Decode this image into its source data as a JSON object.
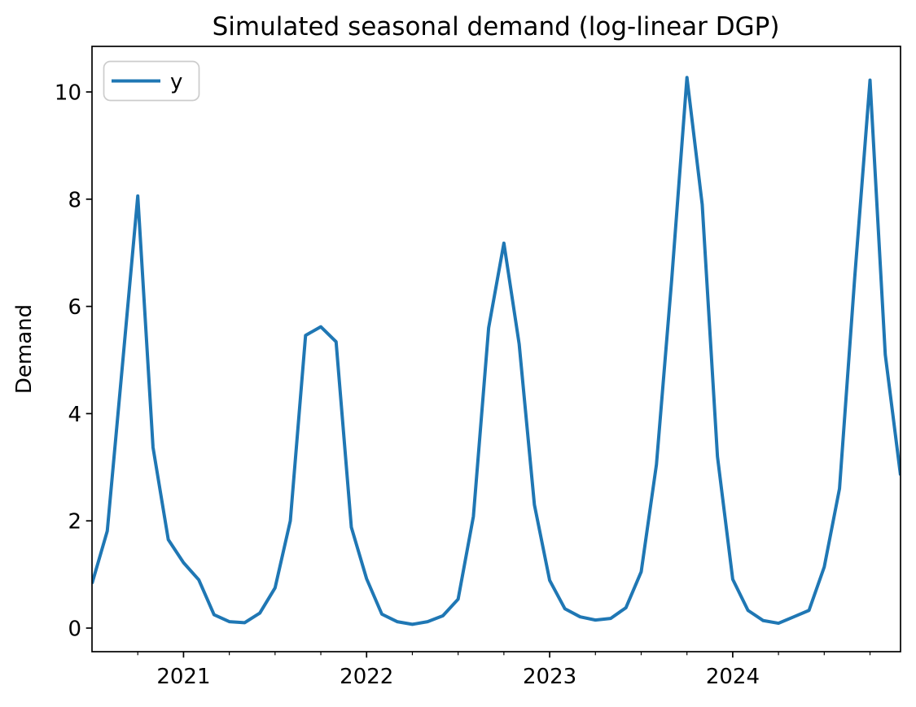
{
  "figure": {
    "title": "Simulated seasonal demand (log-linear DGP)"
  },
  "legend": {
    "position": "upper left",
    "entries": [
      {
        "label": "y",
        "color": "#1f77b4"
      }
    ]
  },
  "colors": {
    "line": "#1f77b4",
    "axes": "#000000",
    "legend_border": "#cccccc",
    "background": "#ffffff"
  },
  "chart_data": {
    "type": "line",
    "title": "Simulated seasonal demand (log-linear DGP)",
    "xlabel": "",
    "ylabel": "Demand",
    "grid": false,
    "legend_position": "upper left",
    "xlim": [
      2020.5,
      2024.9167
    ],
    "ylim": [
      -0.44,
      10.85
    ],
    "y_ticks": [
      0,
      2,
      4,
      6,
      8,
      10
    ],
    "x_major_ticks": [
      {
        "t": 2021,
        "label": "2021"
      },
      {
        "t": 2022,
        "label": "2022"
      },
      {
        "t": 2023,
        "label": "2023"
      },
      {
        "t": 2024,
        "label": "2024"
      }
    ],
    "x_minor_ticks": [
      2020.75,
      2021.25,
      2021.5,
      2021.75,
      2022.25,
      2022.5,
      2022.75,
      2023.25,
      2023.5,
      2023.75,
      2024.25,
      2024.5,
      2024.75
    ],
    "series": [
      {
        "name": "y",
        "color": "#1f77b4",
        "x": [
          "2020-07",
          "2020-08",
          "2020-09",
          "2020-10",
          "2020-11",
          "2020-12",
          "2021-01",
          "2021-02",
          "2021-03",
          "2021-04",
          "2021-05",
          "2021-06",
          "2021-07",
          "2021-08",
          "2021-09",
          "2021-10",
          "2021-11",
          "2021-12",
          "2022-01",
          "2022-02",
          "2022-03",
          "2022-04",
          "2022-05",
          "2022-06",
          "2022-07",
          "2022-08",
          "2022-09",
          "2022-10",
          "2022-11",
          "2022-12",
          "2023-01",
          "2023-02",
          "2023-03",
          "2023-04",
          "2023-05",
          "2023-06",
          "2023-07",
          "2023-08",
          "2023-09",
          "2023-10",
          "2023-11",
          "2023-12",
          "2024-01",
          "2024-02",
          "2024-03",
          "2024-04",
          "2024-05",
          "2024-06",
          "2024-07",
          "2024-08",
          "2024-09",
          "2024-10",
          "2024-11",
          "2024-12"
        ],
        "values": [
          0.83,
          1.81,
          4.92,
          8.06,
          3.37,
          1.65,
          1.22,
          0.9,
          0.25,
          0.12,
          0.1,
          0.28,
          0.75,
          2.0,
          5.46,
          5.62,
          5.34,
          1.88,
          0.92,
          0.26,
          0.12,
          0.07,
          0.12,
          0.23,
          0.54,
          2.08,
          5.6,
          7.18,
          5.3,
          2.3,
          0.89,
          0.36,
          0.21,
          0.15,
          0.18,
          0.38,
          1.05,
          3.05,
          6.5,
          10.27,
          7.9,
          3.2,
          0.91,
          0.33,
          0.14,
          0.09,
          0.21,
          0.33,
          1.14,
          2.6,
          6.55,
          10.22,
          5.1,
          2.85
        ]
      }
    ]
  }
}
